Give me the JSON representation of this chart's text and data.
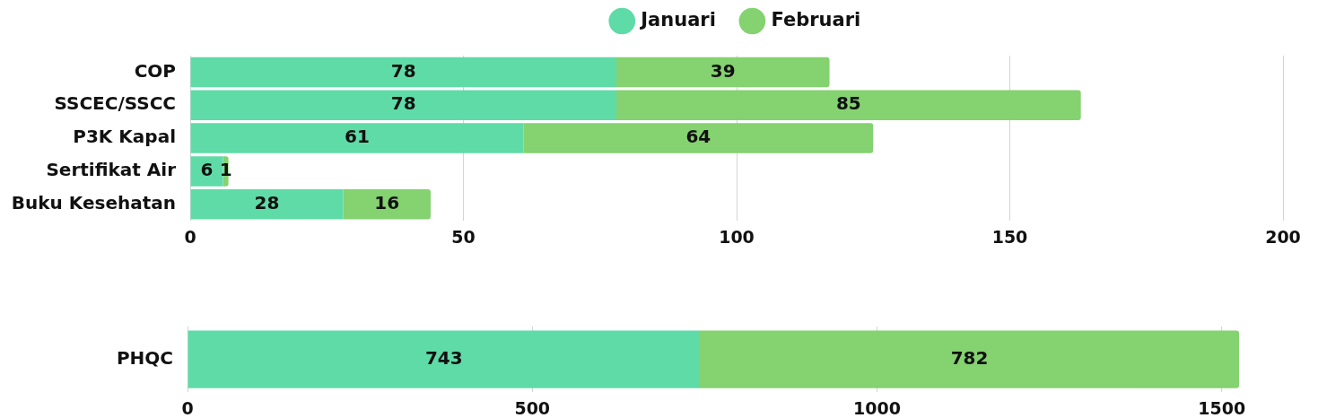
{
  "chart_data": [
    {
      "type": "bar",
      "orientation": "horizontal",
      "stacked": true,
      "categories": [
        "COP",
        "SSCEC/SSCC",
        "P3K Kapal",
        "Sertifikat Air",
        "Buku Kesehatan"
      ],
      "series": [
        {
          "name": "Januari",
          "color": "#5fdba7",
          "values": [
            78,
            78,
            61,
            6,
            28
          ]
        },
        {
          "name": "Februari",
          "color": "#84d270",
          "values": [
            39,
            85,
            64,
            1,
            16
          ]
        }
      ],
      "xlim": [
        0,
        200
      ],
      "xticks": [
        0,
        50,
        100,
        150,
        200
      ],
      "grid": "x",
      "legend": "top",
      "data_labels": true
    },
    {
      "type": "bar",
      "orientation": "horizontal",
      "stacked": true,
      "categories": [
        "PHQC"
      ],
      "series": [
        {
          "color": "#5fdba7",
          "values": [
            743
          ]
        },
        {
          "color": "#84d270",
          "values": [
            782
          ]
        }
      ],
      "xlim": [
        0,
        1525
      ],
      "xticks": [
        0,
        500,
        1000,
        1500
      ],
      "grid": "x",
      "data_labels": true
    }
  ]
}
